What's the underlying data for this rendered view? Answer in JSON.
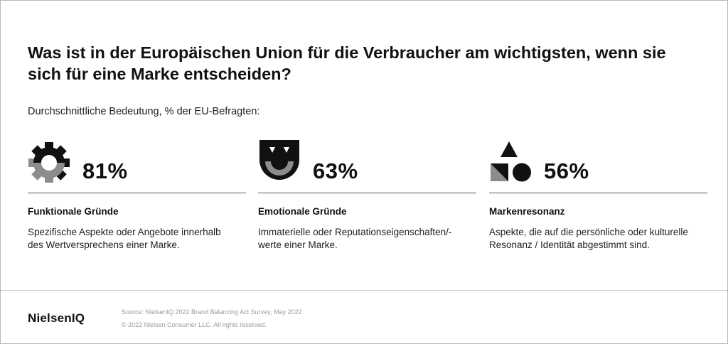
{
  "title": "Was ist in der Europäischen Union für die Verbraucher am wichtigsten, wenn sie sich für eine Marke entscheiden?",
  "subtitle": "Durchschnittliche Bedeutung, % der EU-Befragten:",
  "colors": {
    "dark": "#111111",
    "gray": "#8c8c8c"
  },
  "items": [
    {
      "icon": "gear-icon",
      "percent": "81%",
      "category": "Funktionale Gründe",
      "description": "Spezifische Aspekte oder Angebote innerhalb des Wertversprechens einer Marke."
    },
    {
      "icon": "smiley-mask-icon",
      "percent": "63%",
      "category": "Emotionale Gründe",
      "description": "Immaterielle oder Reputationseigenschaften/-werte einer Marke."
    },
    {
      "icon": "shapes-icon",
      "percent": "56%",
      "category": "Markenresonanz",
      "description": "Aspekte, die auf die persönliche oder kulturelle Resonanz / Identität abgestimmt sind."
    }
  ],
  "footer": {
    "logo": "NielsenIQ",
    "source": "Source: NielsenIQ 2022 Brand Balancing Act Survey, May 2022",
    "copyright": "© 2022 Nielsen Consumer LLC. All rights reserved."
  }
}
